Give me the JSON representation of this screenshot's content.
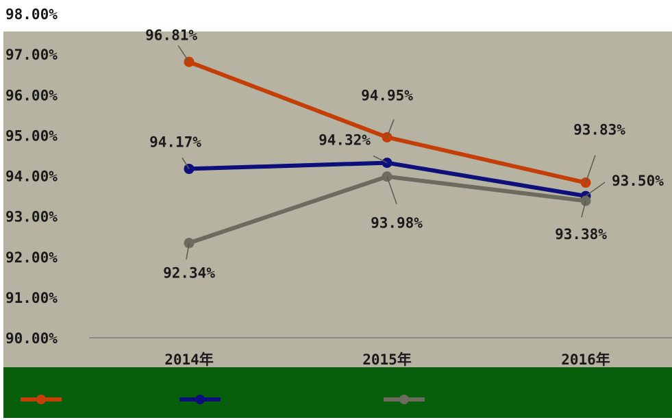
{
  "colors": {
    "plot_bg": "#b7b3a3",
    "legend_bg": "#075f0b",
    "axis_line": "#8a8a80"
  },
  "chart_data": {
    "type": "line",
    "categories": [
      "2014年",
      "2015年",
      "2016年"
    ],
    "ylim": [
      0.9,
      0.98
    ],
    "yticks": [
      "90.00%",
      "91.00%",
      "92.00%",
      "93.00%",
      "94.00%",
      "95.00%",
      "96.00%",
      "97.00%",
      "98.00%"
    ],
    "grid": false,
    "legend_position": "bottom",
    "series": [
      {
        "color": "#c43f08",
        "values": [
          0.9681,
          0.9495,
          0.9383
        ],
        "labels": [
          "96.81%",
          "94.95%",
          "93.83%"
        ]
      },
      {
        "color": "#0d0f7a",
        "values": [
          0.9417,
          0.9432,
          0.935
        ],
        "labels": [
          "94.17%",
          "94.32%",
          "93.50%"
        ]
      },
      {
        "color": "#6b6b5e",
        "values": [
          0.9234,
          0.9398,
          0.9338
        ],
        "labels": [
          "92.34%",
          "93.98%",
          "93.38%"
        ]
      }
    ]
  }
}
